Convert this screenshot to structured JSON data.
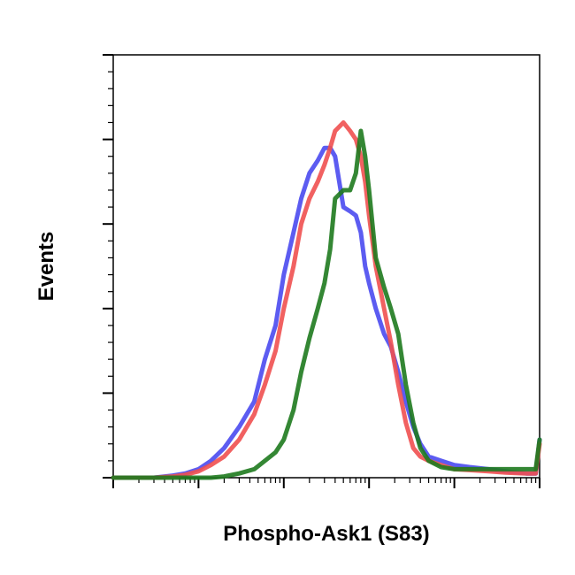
{
  "chart_data": {
    "type": "line",
    "title": "",
    "xlabel": "Phospho-Ask1 (S83)",
    "ylabel": "Events",
    "x_scale": "log",
    "xlim": [
      1,
      100000
    ],
    "ylim": [
      0,
      100
    ],
    "grid": false,
    "legend": "none",
    "series": [
      {
        "color": "#4a4af0",
        "x": [
          1,
          3,
          5,
          7,
          10,
          14,
          20,
          30,
          45,
          60,
          80,
          100,
          130,
          160,
          200,
          250,
          300,
          350,
          400,
          500,
          600,
          700,
          800,
          900,
          1000,
          1200,
          1500,
          1800,
          2200,
          2700,
          3300,
          4000,
          5000,
          7000,
          10000,
          15000,
          25000,
          40000,
          70000,
          90000,
          100000
        ],
        "y": [
          0,
          0,
          0.5,
          1,
          2,
          4,
          7,
          12,
          18,
          28,
          36,
          48,
          58,
          66,
          72,
          75,
          78,
          78,
          76,
          64,
          63,
          62,
          58,
          50,
          46,
          40,
          34,
          31,
          25,
          18,
          12,
          8,
          5,
          4,
          3,
          2.5,
          2,
          1.5,
          1,
          1,
          9
        ]
      },
      {
        "color": "#f05050",
        "x": [
          1,
          3,
          5,
          7,
          10,
          14,
          20,
          30,
          45,
          60,
          80,
          100,
          130,
          160,
          200,
          250,
          300,
          350,
          400,
          500,
          600,
          700,
          800,
          900,
          1000,
          1200,
          1500,
          1800,
          2200,
          2700,
          3300,
          4000,
          5000,
          7000,
          10000,
          15000,
          25000,
          40000,
          70000,
          90000,
          100000
        ],
        "y": [
          0,
          0,
          0.3,
          0.7,
          1.5,
          3,
          5,
          9,
          15,
          22,
          30,
          40,
          50,
          60,
          66,
          70,
          74,
          78,
          82,
          84,
          82,
          80,
          76,
          70,
          62,
          50,
          40,
          32,
          22,
          13,
          7,
          5,
          4,
          3,
          2,
          1.8,
          1.5,
          1.2,
          1,
          1,
          8
        ]
      },
      {
        "color": "#1e7a1e",
        "x": [
          1,
          3,
          5,
          7,
          10,
          14,
          20,
          30,
          45,
          60,
          80,
          100,
          130,
          160,
          200,
          250,
          300,
          350,
          400,
          500,
          600,
          700,
          800,
          900,
          1000,
          1200,
          1500,
          1800,
          2200,
          2700,
          3300,
          4000,
          5000,
          7000,
          10000,
          15000,
          25000,
          40000,
          70000,
          90000,
          100000
        ],
        "y": [
          0,
          0,
          0,
          0,
          0,
          0,
          0.3,
          1,
          2,
          4,
          6,
          9,
          16,
          25,
          33,
          40,
          46,
          54,
          66,
          68,
          68,
          72,
          82,
          76,
          68,
          52,
          45,
          40,
          34,
          22,
          13,
          7,
          4,
          2.5,
          2,
          2,
          2,
          2,
          2,
          2,
          9
        ]
      }
    ]
  }
}
